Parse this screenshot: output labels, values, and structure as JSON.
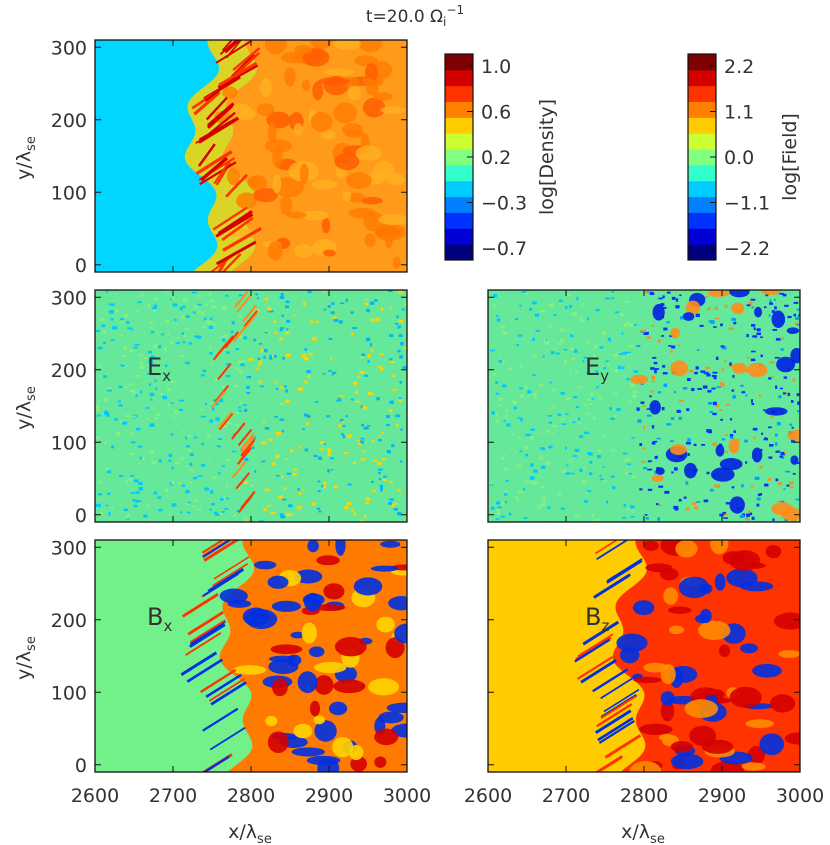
{
  "title": "t=20.0 Ω",
  "title_sub": "i",
  "title_sup": "−1",
  "colors": {
    "jet": [
      "#00007f",
      "#0000d4",
      "#0033ff",
      "#0080ff",
      "#00ccff",
      "#33ffcc",
      "#80ff80",
      "#ccff33",
      "#ffcc00",
      "#ff8000",
      "#ff3300",
      "#d40000",
      "#7f0000"
    ],
    "upstream_density": "#00d6ff",
    "upstream_bx": "#72f08a",
    "upstream_bz": "#ffcc00"
  },
  "axes": {
    "xlabel": "x/λ",
    "xlabel_sub": "se",
    "ylabel": "y/λ",
    "ylabel_sub": "se",
    "xlim": [
      2600,
      3000
    ],
    "ylim": [
      -10,
      310
    ],
    "xticks": [
      "2600",
      "2700",
      "2800",
      "2900",
      "3000"
    ],
    "yticks": [
      "0",
      "100",
      "200",
      "300"
    ]
  },
  "chart_data": [
    {
      "type": "heatmap",
      "panel": "density",
      "label": "",
      "quantity": "log[Density]",
      "shock_front_x": 2800,
      "xlim": [
        2600,
        3000
      ],
      "ylim": [
        -10,
        310
      ]
    },
    {
      "type": "heatmap",
      "panel": "Ex",
      "label": "E",
      "label_sub": "x",
      "quantity": "log[Field]",
      "shock_front_x": 2800,
      "xlim": [
        2600,
        3000
      ],
      "ylim": [
        -10,
        310
      ]
    },
    {
      "type": "heatmap",
      "panel": "Ey",
      "label": "E",
      "label_sub": "y",
      "quantity": "log[Field]",
      "shock_front_x": 2800,
      "xlim": [
        2600,
        3000
      ],
      "ylim": [
        -10,
        310
      ]
    },
    {
      "type": "heatmap",
      "panel": "Bx",
      "label": "B",
      "label_sub": "x",
      "quantity": "log[Field]",
      "shock_front_x": 2800,
      "xlim": [
        2600,
        3000
      ],
      "ylim": [
        -10,
        310
      ]
    },
    {
      "type": "heatmap",
      "panel": "Bz",
      "label": "B",
      "label_sub": "z",
      "quantity": "log[Field]",
      "shock_front_x": 2800,
      "xlim": [
        2600,
        3000
      ],
      "ylim": [
        -10,
        310
      ]
    }
  ],
  "colorbars": [
    {
      "label": "log[Density]",
      "ticks": [
        "1.0",
        "0.6",
        "0.2",
        "−0.3",
        "−0.7"
      ]
    },
    {
      "label": "log[Field]",
      "ticks": [
        "2.2",
        "1.1",
        "0.0",
        "−1.1",
        "−2.2"
      ]
    }
  ]
}
